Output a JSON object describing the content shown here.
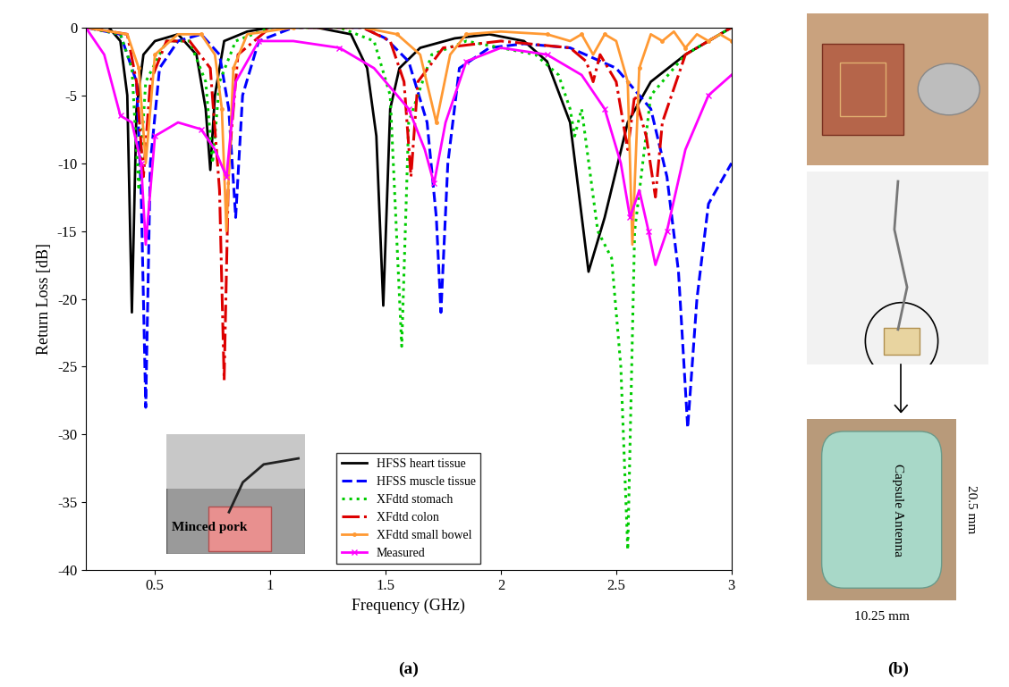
{
  "chart_data": {
    "type": "line",
    "xlabel": "Frequency (GHz)",
    "ylabel": "Return Loss [dB]",
    "xlim": [
      0.2,
      3
    ],
    "xticks": [
      0.5,
      1,
      1.5,
      2,
      2.5,
      3
    ],
    "ylim": [
      -40,
      0
    ],
    "yticks": [
      -40,
      -35,
      -30,
      -25,
      -20,
      -15,
      -10,
      -5,
      0
    ],
    "grid": false,
    "legend": "lower center",
    "series": [
      {
        "name": "HFSS heart tissue",
        "color": "#000000",
        "line_style": "solid",
        "x": [
          0.2,
          0.3,
          0.35,
          0.38,
          0.4,
          0.42,
          0.45,
          0.5,
          0.6,
          0.68,
          0.72,
          0.74,
          0.76,
          0.8,
          0.9,
          1.0,
          1.2,
          1.35,
          1.42,
          1.46,
          1.49,
          1.52,
          1.56,
          1.65,
          1.8,
          1.95,
          2.1,
          2.2,
          2.3,
          2.38,
          2.45,
          2.55,
          2.65,
          2.8,
          3.0
        ],
        "values": [
          0,
          0,
          -1,
          -5,
          -21,
          -6,
          -2,
          -1,
          -0.5,
          -2,
          -6,
          -10.5,
          -5,
          -1,
          -0.3,
          0,
          0,
          -0.5,
          -3,
          -8,
          -20.5,
          -6,
          -3,
          -1.5,
          -0.8,
          -0.5,
          -1,
          -2.5,
          -7,
          -18,
          -14,
          -7,
          -4,
          -2,
          0
        ]
      },
      {
        "name": "HFSS muscle tissue",
        "color": "#0000ff",
        "line_style": "dashed",
        "x": [
          0.2,
          0.35,
          0.42,
          0.44,
          0.46,
          0.48,
          0.52,
          0.6,
          0.7,
          0.78,
          0.82,
          0.85,
          0.88,
          0.95,
          1.1,
          1.4,
          1.5,
          1.6,
          1.68,
          1.72,
          1.74,
          1.77,
          1.82,
          1.95,
          2.1,
          2.3,
          2.5,
          2.65,
          2.72,
          2.77,
          2.81,
          2.85,
          2.9,
          3.0
        ],
        "values": [
          0,
          -0.5,
          -4,
          -12,
          -28,
          -10,
          -3,
          -1,
          -0.5,
          -2,
          -6,
          -14,
          -5,
          -1,
          0,
          0,
          -0.8,
          -2.5,
          -7,
          -14,
          -21,
          -10,
          -3,
          -1.5,
          -1.2,
          -1.5,
          -3,
          -6,
          -11,
          -18,
          -29.5,
          -20,
          -13,
          -10
        ]
      },
      {
        "name": "XFdtd stomach",
        "color": "#00cc00",
        "line_style": "dotted",
        "x": [
          0.2,
          0.35,
          0.4,
          0.43,
          0.46,
          0.55,
          0.65,
          0.72,
          0.75,
          0.78,
          0.85,
          1.0,
          1.3,
          1.45,
          1.52,
          1.57,
          1.6,
          1.7,
          1.85,
          2.0,
          2.15,
          2.25,
          2.3,
          2.32,
          2.35,
          2.42,
          2.48,
          2.52,
          2.55,
          2.58,
          2.65,
          2.8,
          3.0
        ],
        "values": [
          0,
          -0.5,
          -3,
          -12,
          -4,
          -1,
          -1,
          -4,
          -10,
          -4,
          -1,
          0,
          0,
          -1,
          -5,
          -23.5,
          -7,
          -2,
          -1,
          -1.5,
          -2,
          -3.5,
          -6,
          -8,
          -6,
          -15,
          -17,
          -25,
          -38.5,
          -15,
          -5,
          -2,
          0
        ]
      },
      {
        "name": "XFdtd colon",
        "color": "#dd0000",
        "line_style": "dashdot",
        "x": [
          0.2,
          0.38,
          0.42,
          0.45,
          0.48,
          0.55,
          0.65,
          0.74,
          0.78,
          0.8,
          0.82,
          0.86,
          1.0,
          1.4,
          1.52,
          1.58,
          1.61,
          1.64,
          1.75,
          2.0,
          2.3,
          2.37,
          2.4,
          2.43,
          2.5,
          2.55,
          2.58,
          2.63,
          2.67,
          2.7,
          2.8,
          3.0
        ],
        "values": [
          0,
          -0.5,
          -4,
          -11,
          -4,
          -1,
          -1,
          -3,
          -12,
          -26,
          -10,
          -2,
          0,
          0,
          -1,
          -4,
          -11,
          -4,
          -1.5,
          -1,
          -1.5,
          -2.5,
          -4,
          -2,
          -4,
          -9,
          -5,
          -8,
          -12.5,
          -7,
          -2,
          0
        ]
      },
      {
        "name": "XFdtd small bowel",
        "color": "#ff9933",
        "line_style": "solid",
        "marker": "point",
        "x": [
          0.2,
          0.38,
          0.43,
          0.46,
          0.5,
          0.6,
          0.7,
          0.76,
          0.79,
          0.81,
          0.84,
          0.9,
          1.1,
          1.4,
          1.55,
          1.65,
          1.72,
          1.78,
          1.85,
          2.0,
          2.2,
          2.3,
          2.35,
          2.4,
          2.45,
          2.5,
          2.55,
          2.57,
          2.6,
          2.65,
          2.7,
          2.75,
          2.8,
          2.85,
          2.9,
          2.95,
          3.0
        ],
        "values": [
          0,
          -0.5,
          -3,
          -10,
          -2,
          -0.5,
          -0.5,
          -2,
          -6,
          -15,
          -3,
          -0.5,
          0,
          0,
          -0.5,
          -2,
          -7,
          -2,
          -0.5,
          -0.3,
          -0.5,
          -1,
          -0.5,
          -2,
          -0.5,
          -1,
          -4,
          -16,
          -3,
          -0.5,
          -1,
          -0.3,
          -1.5,
          -0.5,
          -1,
          -0.5,
          -1
        ]
      },
      {
        "name": "Measured",
        "color": "#ff00ff",
        "line_style": "solid",
        "marker": "x",
        "x": [
          0.2,
          0.28,
          0.35,
          0.4,
          0.44,
          0.46,
          0.5,
          0.6,
          0.7,
          0.76,
          0.81,
          0.85,
          0.95,
          1.1,
          1.3,
          1.45,
          1.6,
          1.67,
          1.71,
          1.76,
          1.85,
          2.0,
          2.2,
          2.35,
          2.45,
          2.52,
          2.56,
          2.6,
          2.64,
          2.67,
          2.72,
          2.8,
          2.9,
          3.0
        ],
        "values": [
          0,
          -2,
          -6.5,
          -7,
          -10,
          -16,
          -8,
          -7,
          -7.5,
          -9,
          -11,
          -4,
          -1,
          -1,
          -1.5,
          -3,
          -6,
          -9,
          -11.5,
          -7,
          -2.5,
          -1.5,
          -2,
          -3.5,
          -6,
          -10,
          -14,
          -12,
          -15,
          -17.5,
          -15,
          -9,
          -5,
          -3.5
        ]
      }
    ]
  },
  "panels": {
    "a": "(a)",
    "b": "(b)"
  },
  "inset": {
    "label": "Minced pork"
  },
  "photo": {
    "label": "Capsule Antenna",
    "height": "20.5 mm",
    "width": "10.25 mm"
  }
}
